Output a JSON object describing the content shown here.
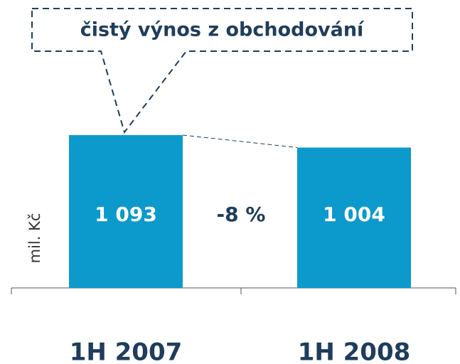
{
  "chart_data": {
    "type": "bar",
    "title": "čistý výnos z obchodování",
    "y_label": "mil. Kč",
    "categories": [
      "1H 2007",
      "1H 2008"
    ],
    "values": [
      1093,
      1004
    ],
    "value_labels": [
      "1 093",
      "1 004"
    ],
    "annotation": "-8 %",
    "color": "#0b9acb",
    "ylim": [
      0,
      1200
    ]
  }
}
